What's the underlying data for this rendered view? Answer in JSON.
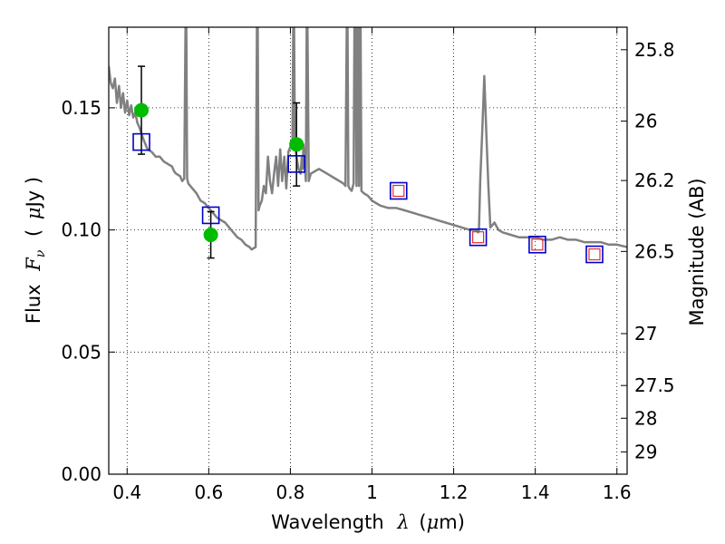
{
  "chart_data": {
    "type": "scatter",
    "xlabel_main": "Wavelength",
    "xlabel_symbol": "λ",
    "xlabel_unit_open": "(",
    "xlabel_unit_mu": "μ",
    "xlabel_unit_rest": "m)",
    "ylabel_main": "Flux",
    "ylabel_symbol": "F",
    "ylabel_sub": "ν",
    "ylabel_unit_open": "(",
    "ylabel_unit_mu": "μ",
    "ylabel_unit_rest": "Jy )",
    "y2label": "Magnitude (AB)",
    "xlim": [
      0.355,
      1.625
    ],
    "ylim": [
      0.0,
      0.183
    ],
    "grid": true,
    "x_ticks": [
      {
        "value": 0.4,
        "label": "0.4"
      },
      {
        "value": 0.6,
        "label": "0.6"
      },
      {
        "value": 0.8,
        "label": "0.8"
      },
      {
        "value": 1.0,
        "label": "1"
      },
      {
        "value": 1.2,
        "label": "1.2"
      },
      {
        "value": 1.4,
        "label": "1.4"
      },
      {
        "value": 1.6,
        "label": "1.6"
      }
    ],
    "y_ticks": [
      {
        "value": 0.0,
        "label": "0.00"
      },
      {
        "value": 0.05,
        "label": "0.05"
      },
      {
        "value": 0.1,
        "label": "0.10"
      },
      {
        "value": 0.15,
        "label": "0.15"
      }
    ],
    "y2_ticks": [
      {
        "value": 25.8,
        "label": "25.8"
      },
      {
        "value": 26.0,
        "label": "26"
      },
      {
        "value": 26.2,
        "label": "26.2"
      },
      {
        "value": 26.5,
        "label": "26.5"
      },
      {
        "value": 27.0,
        "label": "27"
      },
      {
        "value": 27.5,
        "label": "27.5"
      },
      {
        "value": 28.0,
        "label": "28"
      },
      {
        "value": 29.0,
        "label": "29"
      }
    ],
    "series": [
      {
        "kind": "line",
        "color": "#808080",
        "points": [
          [
            0.355,
            0.167
          ],
          [
            0.36,
            0.16
          ],
          [
            0.365,
            0.158
          ],
          [
            0.37,
            0.162
          ],
          [
            0.375,
            0.152
          ],
          [
            0.38,
            0.159
          ],
          [
            0.385,
            0.15
          ],
          [
            0.39,
            0.156
          ],
          [
            0.395,
            0.148
          ],
          [
            0.4,
            0.153
          ],
          [
            0.405,
            0.147
          ],
          [
            0.41,
            0.151
          ],
          [
            0.415,
            0.146
          ],
          [
            0.42,
            0.148
          ],
          [
            0.425,
            0.144
          ],
          [
            0.43,
            0.142
          ],
          [
            0.44,
            0.137
          ],
          [
            0.45,
            0.133
          ],
          [
            0.46,
            0.132
          ],
          [
            0.47,
            0.13
          ],
          [
            0.48,
            0.13
          ],
          [
            0.49,
            0.128
          ],
          [
            0.5,
            0.127
          ],
          [
            0.51,
            0.126
          ],
          [
            0.515,
            0.124
          ],
          [
            0.52,
            0.123
          ],
          [
            0.53,
            0.122
          ],
          [
            0.535,
            0.12
          ],
          [
            0.54,
            0.121
          ],
          [
            0.543,
            0.183
          ],
          [
            0.545,
            0.183
          ],
          [
            0.547,
            0.121
          ],
          [
            0.55,
            0.119
          ],
          [
            0.56,
            0.117
          ],
          [
            0.57,
            0.115
          ],
          [
            0.58,
            0.112
          ],
          [
            0.59,
            0.111
          ],
          [
            0.6,
            0.109
          ],
          [
            0.61,
            0.107
          ],
          [
            0.62,
            0.105
          ],
          [
            0.63,
            0.104
          ],
          [
            0.64,
            0.103
          ],
          [
            0.65,
            0.101
          ],
          [
            0.66,
            0.099
          ],
          [
            0.67,
            0.097
          ],
          [
            0.68,
            0.096
          ],
          [
            0.69,
            0.094
          ],
          [
            0.7,
            0.093
          ],
          [
            0.705,
            0.092
          ],
          [
            0.715,
            0.093
          ],
          [
            0.718,
            0.183
          ],
          [
            0.72,
            0.183
          ],
          [
            0.722,
            0.108
          ],
          [
            0.725,
            0.11
          ],
          [
            0.73,
            0.112
          ],
          [
            0.735,
            0.118
          ],
          [
            0.74,
            0.115
          ],
          [
            0.745,
            0.13
          ],
          [
            0.75,
            0.12
          ],
          [
            0.755,
            0.115
          ],
          [
            0.76,
            0.123
          ],
          [
            0.765,
            0.13
          ],
          [
            0.77,
            0.118
          ],
          [
            0.775,
            0.133
          ],
          [
            0.78,
            0.12
          ],
          [
            0.785,
            0.13
          ],
          [
            0.79,
            0.117
          ],
          [
            0.795,
            0.132
          ],
          [
            0.8,
            0.134
          ],
          [
            0.805,
            0.136
          ],
          [
            0.807,
            0.183
          ],
          [
            0.809,
            0.183
          ],
          [
            0.811,
            0.135
          ],
          [
            0.815,
            0.13
          ],
          [
            0.82,
            0.125
          ],
          [
            0.825,
            0.123
          ],
          [
            0.828,
            0.13
          ],
          [
            0.83,
            0.125
          ],
          [
            0.832,
            0.135
          ],
          [
            0.835,
            0.128
          ],
          [
            0.838,
            0.12
          ],
          [
            0.84,
            0.183
          ],
          [
            0.842,
            0.183
          ],
          [
            0.845,
            0.12
          ],
          [
            0.85,
            0.123
          ],
          [
            0.86,
            0.124
          ],
          [
            0.87,
            0.125
          ],
          [
            0.88,
            0.124
          ],
          [
            0.89,
            0.123
          ],
          [
            0.9,
            0.122
          ],
          [
            0.91,
            0.121
          ],
          [
            0.92,
            0.12
          ],
          [
            0.93,
            0.119
          ],
          [
            0.935,
            0.118
          ],
          [
            0.938,
            0.183
          ],
          [
            0.94,
            0.183
          ],
          [
            0.942,
            0.118
          ],
          [
            0.945,
            0.117
          ],
          [
            0.95,
            0.116
          ],
          [
            0.955,
            0.119
          ],
          [
            0.957,
            0.183
          ],
          [
            0.96,
            0.183
          ],
          [
            0.962,
            0.118
          ],
          [
            0.964,
            0.183
          ],
          [
            0.966,
            0.183
          ],
          [
            0.968,
            0.118
          ],
          [
            0.97,
            0.183
          ],
          [
            0.972,
            0.183
          ],
          [
            0.974,
            0.116
          ],
          [
            0.98,
            0.115
          ],
          [
            0.99,
            0.114
          ],
          [
            1.0,
            0.112
          ],
          [
            1.01,
            0.111
          ],
          [
            1.02,
            0.11
          ],
          [
            1.04,
            0.109
          ],
          [
            1.06,
            0.109
          ],
          [
            1.08,
            0.108
          ],
          [
            1.1,
            0.107
          ],
          [
            1.12,
            0.106
          ],
          [
            1.14,
            0.105
          ],
          [
            1.16,
            0.104
          ],
          [
            1.18,
            0.103
          ],
          [
            1.2,
            0.102
          ],
          [
            1.22,
            0.101
          ],
          [
            1.24,
            0.1
          ],
          [
            1.255,
            0.1
          ],
          [
            1.26,
            0.099
          ],
          [
            1.262,
            0.1
          ],
          [
            1.265,
            0.12
          ],
          [
            1.27,
            0.14
          ],
          [
            1.275,
            0.163
          ],
          [
            1.28,
            0.14
          ],
          [
            1.285,
            0.118
          ],
          [
            1.29,
            0.101
          ],
          [
            1.3,
            0.103
          ],
          [
            1.31,
            0.1
          ],
          [
            1.32,
            0.099
          ],
          [
            1.34,
            0.098
          ],
          [
            1.36,
            0.097
          ],
          [
            1.38,
            0.097
          ],
          [
            1.4,
            0.097
          ],
          [
            1.42,
            0.096
          ],
          [
            1.44,
            0.096
          ],
          [
            1.46,
            0.097
          ],
          [
            1.48,
            0.096
          ],
          [
            1.5,
            0.096
          ],
          [
            1.52,
            0.095
          ],
          [
            1.54,
            0.095
          ],
          [
            1.56,
            0.095
          ],
          [
            1.58,
            0.094
          ],
          [
            1.6,
            0.094
          ],
          [
            1.625,
            0.093
          ]
        ]
      },
      {
        "kind": "points",
        "marker": "circle",
        "color": "#00bb00",
        "points": [
          {
            "x": 0.435,
            "y": 0.149,
            "err": 0.018
          },
          {
            "x": 0.605,
            "y": 0.098,
            "err": 0.0095
          },
          {
            "x": 0.815,
            "y": 0.135,
            "err": 0.017
          }
        ]
      },
      {
        "kind": "points",
        "marker": "square",
        "color": "#0000cc",
        "points": [
          {
            "x": 0.435,
            "y": 0.136
          },
          {
            "x": 0.605,
            "y": 0.106
          },
          {
            "x": 0.815,
            "y": 0.127
          },
          {
            "x": 1.065,
            "y": 0.116
          },
          {
            "x": 1.26,
            "y": 0.097
          },
          {
            "x": 1.405,
            "y": 0.094
          },
          {
            "x": 1.545,
            "y": 0.09
          }
        ]
      },
      {
        "kind": "points",
        "marker": "square-small",
        "color": "#e03030",
        "points": [
          {
            "x": 1.065,
            "y": 0.116
          },
          {
            "x": 1.26,
            "y": 0.097
          },
          {
            "x": 1.405,
            "y": 0.094
          },
          {
            "x": 1.545,
            "y": 0.09
          }
        ]
      }
    ]
  }
}
